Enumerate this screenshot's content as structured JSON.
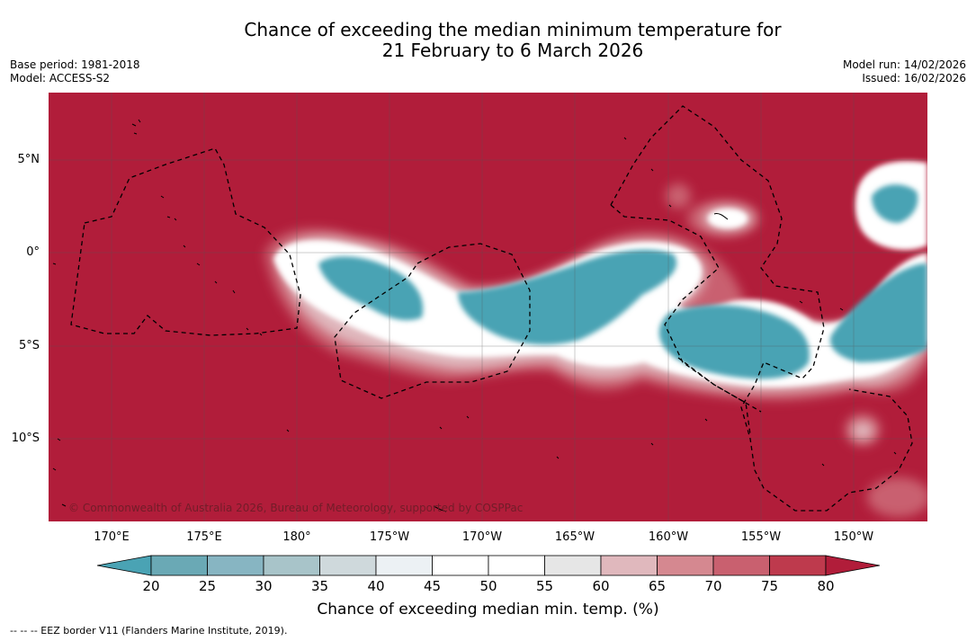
{
  "title": {
    "line1": "Chance of exceeding the median minimum temperature for",
    "line2": "21 February to 6 March 2026"
  },
  "meta": {
    "base_period": "Base period: 1981-2018",
    "model": "Model: ACCESS-S2",
    "model_run": "Model run: 14/02/2026",
    "issued": "Issued: 16/02/2026"
  },
  "map": {
    "copyright": "© Commonwealth of Australia 2026, Bureau of Meteorology, supported by COSPPac",
    "lat_labels": [
      "5°N",
      "0°",
      "5°S",
      "10°S"
    ],
    "lon_labels": [
      "170°E",
      "175°E",
      "180°",
      "175°W",
      "170°W",
      "165°W",
      "160°W",
      "155°W",
      "150°W"
    ]
  },
  "colorbar": {
    "ticks": [
      "20",
      "25",
      "30",
      "35",
      "40",
      "45",
      "50",
      "55",
      "60",
      "65",
      "70",
      "75",
      "80"
    ],
    "colors": [
      "#4aa3b4",
      "#6aa9b5",
      "#87b5c2",
      "#a8c4c9",
      "#cfd9dc",
      "#ecf1f4",
      "#ffffff",
      "#ffffff",
      "#e6e6e6",
      "#e0b8bd",
      "#d58890",
      "#c9606f",
      "#be3a4d",
      "#b11d3a"
    ],
    "label": "Chance of exceeding median min. temp. (%)"
  },
  "footer": "--  --  -- EEZ border V11 (Flanders Marine Institute, 2019)."
}
